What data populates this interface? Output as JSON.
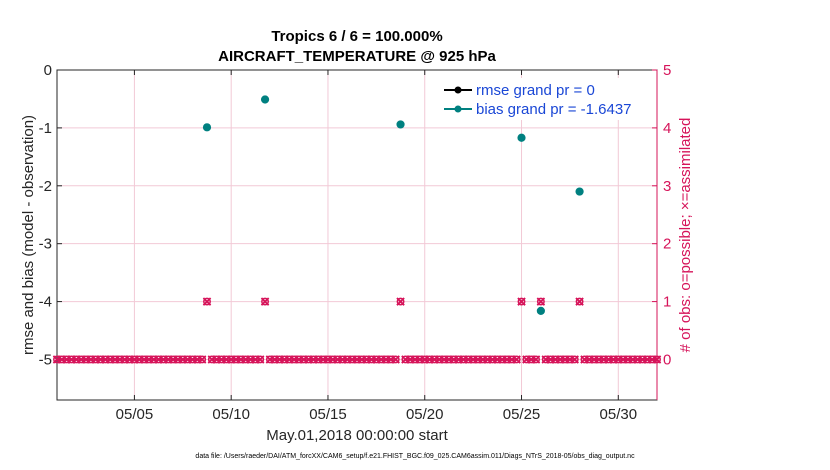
{
  "chart_data": {
    "type": "scatter",
    "title": [
      "Tropics 6 / 6 = 100.000%",
      "AIRCRAFT_TEMPERATURE @ 925 hPa"
    ],
    "xlabel": "May.01,2018 00:00:00 start",
    "ylabel": "rmse and bias (model - observation)",
    "y2label": "# of obs: o=possible; ×=assimilated",
    "xlim": [
      1,
      32
    ],
    "ylim": [
      -5.7,
      0
    ],
    "y2lim": [
      -0.7,
      5
    ],
    "x_ticks": [
      5,
      10,
      15,
      20,
      25,
      30
    ],
    "x_tick_labels": [
      "05/05",
      "05/10",
      "05/15",
      "05/20",
      "05/25",
      "05/30"
    ],
    "y_ticks": [
      0,
      -1,
      -2,
      -3,
      -4,
      -5
    ],
    "y_tick_labels": [
      "0",
      "-1",
      "-2",
      "-3",
      "-4",
      "-5"
    ],
    "y2_ticks": [
      0,
      1,
      2,
      3,
      4,
      5
    ],
    "y2_tick_labels": [
      "0",
      "1",
      "2",
      "3",
      "4",
      "5"
    ],
    "grid": true,
    "legend_position": "top-right",
    "legend": [
      "rmse grand pr = 0",
      "bias grand pr = -1.6437"
    ],
    "series": [
      {
        "name": "rmse grand pr = 0",
        "axis": "left",
        "color": "#000000",
        "points": []
      },
      {
        "name": "bias grand pr = -1.6437",
        "axis": "left",
        "color": "#008080",
        "points": [
          {
            "x": 8.75,
            "y": -0.99
          },
          {
            "x": 11.75,
            "y": -0.51
          },
          {
            "x": 18.75,
            "y": -0.94
          },
          {
            "x": 25.0,
            "y": -1.17
          },
          {
            "x": 26.0,
            "y": -4.16
          },
          {
            "x": 28.0,
            "y": -2.1
          }
        ]
      },
      {
        "name": "obs possible",
        "axis": "right",
        "color": "#d6145a",
        "marker": "o",
        "x_start": 1.0,
        "x_end": 32.0,
        "x_step": 0.25,
        "baseline": 0,
        "nonzero": [
          {
            "x": 8.75,
            "y": 1
          },
          {
            "x": 11.75,
            "y": 1
          },
          {
            "x": 18.75,
            "y": 1
          },
          {
            "x": 25.0,
            "y": 1
          },
          {
            "x": 26.0,
            "y": 1
          },
          {
            "x": 28.0,
            "y": 1
          }
        ]
      },
      {
        "name": "obs assimilated",
        "axis": "right",
        "color": "#d6145a",
        "marker": "x",
        "x_start": 1.0,
        "x_end": 32.0,
        "x_step": 0.25,
        "baseline": 0,
        "nonzero": [
          {
            "x": 8.75,
            "y": 1
          },
          {
            "x": 11.75,
            "y": 1
          },
          {
            "x": 18.75,
            "y": 1
          },
          {
            "x": 25.0,
            "y": 1
          },
          {
            "x": 26.0,
            "y": 1
          },
          {
            "x": 28.0,
            "y": 1
          }
        ]
      }
    ],
    "footnote": "data file: /Users/raeder/DAI/ATM_forcXX/CAM6_setup/f.e21.FHIST_BGC.f09_025.CAM6assim.011/Diags_NTrS_2018-05/obs_diag_output.nc"
  },
  "colors": {
    "rmse": "#000000",
    "bias": "#008080",
    "obs": "#d6145a",
    "legend_text": "#1a47d6",
    "grid": "#f2c9d6"
  }
}
